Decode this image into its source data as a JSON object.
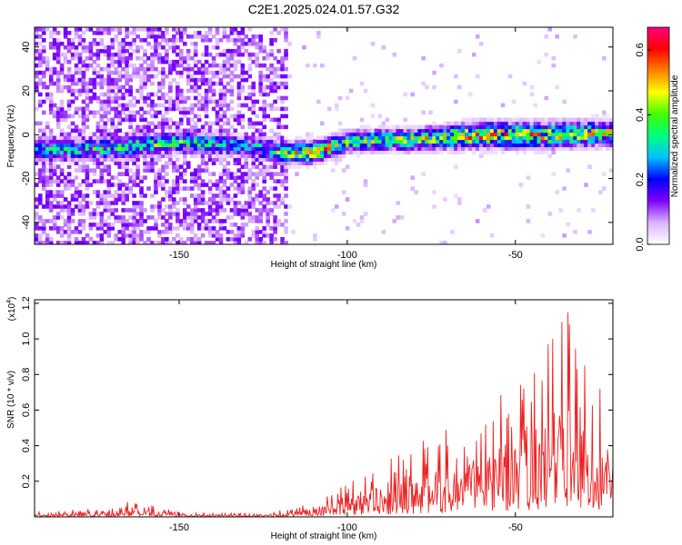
{
  "figure": {
    "title": "C2E1.2025.024.01.57.G32"
  },
  "chart_data": [
    {
      "type": "heatmap",
      "xlabel": "Height of straight line (km)",
      "ylabel": "Frequency (Hz)",
      "xlim": [
        -193,
        -21
      ],
      "ylim": [
        -50,
        49
      ],
      "xticks": [
        -150,
        -100,
        -50
      ],
      "yticks": [
        -40,
        -20,
        0,
        20,
        40
      ],
      "grid": false,
      "colorbar": {
        "label": "Normalized spectral amplitude",
        "range": [
          0,
          0.67
        ],
        "ticks": [
          0.0,
          0.2,
          0.4,
          0.6
        ],
        "colors": [
          "#ffffff",
          "#d9b3ff",
          "#8000ff",
          "#0000ff",
          "#00c0ff",
          "#00ff80",
          "#40ff00",
          "#ffff00",
          "#ff8000",
          "#ff0000",
          "#ff0080"
        ]
      },
      "signal_band": {
        "x": [
          -193,
          -170,
          -150,
          -130,
          -118,
          -110,
          -100,
          -80,
          -60,
          -40,
          -21
        ],
        "center_freq": [
          -7,
          -6,
          -3,
          -5,
          -8,
          -8,
          -3,
          -2,
          0,
          0,
          1
        ],
        "halfwidth": [
          5,
          5,
          5,
          5,
          5,
          5,
          5,
          5,
          6,
          6,
          6
        ],
        "peak_amplitude": [
          0.35,
          0.4,
          0.45,
          0.3,
          0.5,
          0.6,
          0.45,
          0.5,
          0.6,
          0.55,
          0.5
        ]
      },
      "noise_region": {
        "x_range": [
          -193,
          -118
        ],
        "freq_range": [
          -50,
          49
        ],
        "amplitude_range": [
          0.05,
          0.15
        ]
      }
    },
    {
      "type": "line",
      "xlabel": "Height of straight line (km)",
      "ylabel": "SNR (10 * v/v)",
      "y_scale_label": "(x10",
      "y_scale_exp": "4",
      "y_scale_close": ")",
      "xlim": [
        -193,
        -21
      ],
      "ylim": [
        0,
        1.22
      ],
      "xticks": [
        -150,
        -100,
        -50
      ],
      "yticks": [
        0.2,
        0.4,
        0.6,
        0.8,
        1.0,
        1.2
      ],
      "grid": false,
      "series": [
        {
          "color": "#ee2222",
          "x": [
            -193,
            -170,
            -165,
            -150,
            -125,
            -110,
            -100,
            -90,
            -80,
            -70,
            -60,
            -50,
            -40,
            -35,
            -30,
            -25,
            -21
          ],
          "envelope": [
            0.03,
            0.05,
            0.1,
            0.03,
            0.02,
            0.08,
            0.2,
            0.3,
            0.42,
            0.5,
            0.6,
            0.75,
            1.02,
            1.18,
            0.95,
            0.8,
            0.6
          ]
        }
      ]
    }
  ]
}
